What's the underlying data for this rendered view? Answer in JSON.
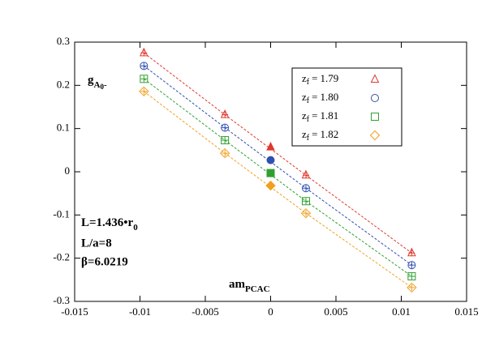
{
  "chart_data": {
    "type": "scatter",
    "x": [
      -0.0097,
      -0.0035,
      0.0027,
      0.0108
    ],
    "series": [
      {
        "name": "1.79",
        "color": "#e0392f",
        "marker": "triangle",
        "values": [
          0.275,
          0.132,
          -0.008,
          -0.188
        ],
        "intercept": 0.057
      },
      {
        "name": "1.80",
        "color": "#3050b0",
        "marker": "circle",
        "values": [
          0.245,
          0.102,
          -0.038,
          -0.216
        ],
        "intercept": 0.027
      },
      {
        "name": "1.81",
        "color": "#30a030",
        "marker": "square",
        "values": [
          0.215,
          0.073,
          -0.068,
          -0.242
        ],
        "intercept": -0.003
      },
      {
        "name": "1.82",
        "color": "#f0a020",
        "marker": "diamond",
        "values": [
          0.186,
          0.043,
          -0.096,
          -0.268
        ],
        "intercept": -0.032
      }
    ],
    "legend_label": {
      "var": "z",
      "sub": "f",
      "eq": "="
    },
    "y_label": {
      "base": "g",
      "sub": "A",
      "subsub": "0",
      "sup": "-"
    },
    "x_label": {
      "base": "am",
      "sub": "PCAC"
    },
    "annotations": [
      {
        "base": "L=1.436•r",
        "sub": "0"
      },
      {
        "base": "L/a=8"
      },
      {
        "base": "β=6.0219"
      }
    ],
    "xlim": [
      -0.015,
      0.015
    ],
    "xticks": [
      -0.015,
      -0.01,
      -0.005,
      0,
      0.005,
      0.01,
      0.015
    ],
    "ylim": [
      -0.3,
      0.3
    ],
    "yticks": [
      -0.3,
      -0.2,
      -0.1,
      0,
      0.1,
      0.2,
      0.3
    ],
    "legend": "upper right"
  }
}
